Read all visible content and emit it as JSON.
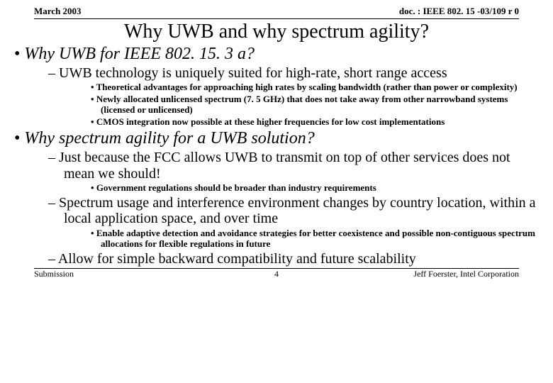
{
  "header": {
    "date": "March 2003",
    "doc": "doc. : IEEE 802. 15 -03/109 r 0"
  },
  "title": "Why UWB and why spectrum agility?",
  "bullets": {
    "l1_a": "Why UWB for IEEE 802. 15. 3 a?",
    "l2_a1": " UWB technology is uniquely suited for high-rate, short range access",
    "l3_a1a": "Theoretical advantages for approaching high rates by scaling bandwidth (rather than power or complexity)",
    "l3_a1b": "Newly allocated unlicensed spectrum (7. 5 GHz) that does not take away from other narrowband systems (licensed or unlicensed)",
    "l3_a1c": "CMOS integration now possible at these higher frequencies for low cost implementations",
    "l1_b": "Why spectrum agility for a UWB solution?",
    "l2_b1": " Just because the FCC allows UWB to transmit on top of other services does not mean we should!",
    "l3_b1a": "Government regulations should be broader than industry requirements",
    "l2_b2": "Spectrum usage and interference environment changes by country location, within a local application space, and over time",
    "l3_b2a": "Enable adaptive detection and avoidance strategies for better coexistence and possible non-contiguous spectrum allocations for flexible regulations in future",
    "l2_b3": "Allow for simple backward compatibility and future scalability"
  },
  "footer": {
    "left": "Submission",
    "page": "4",
    "right": "Jeff Foerster, Intel Corporation"
  }
}
